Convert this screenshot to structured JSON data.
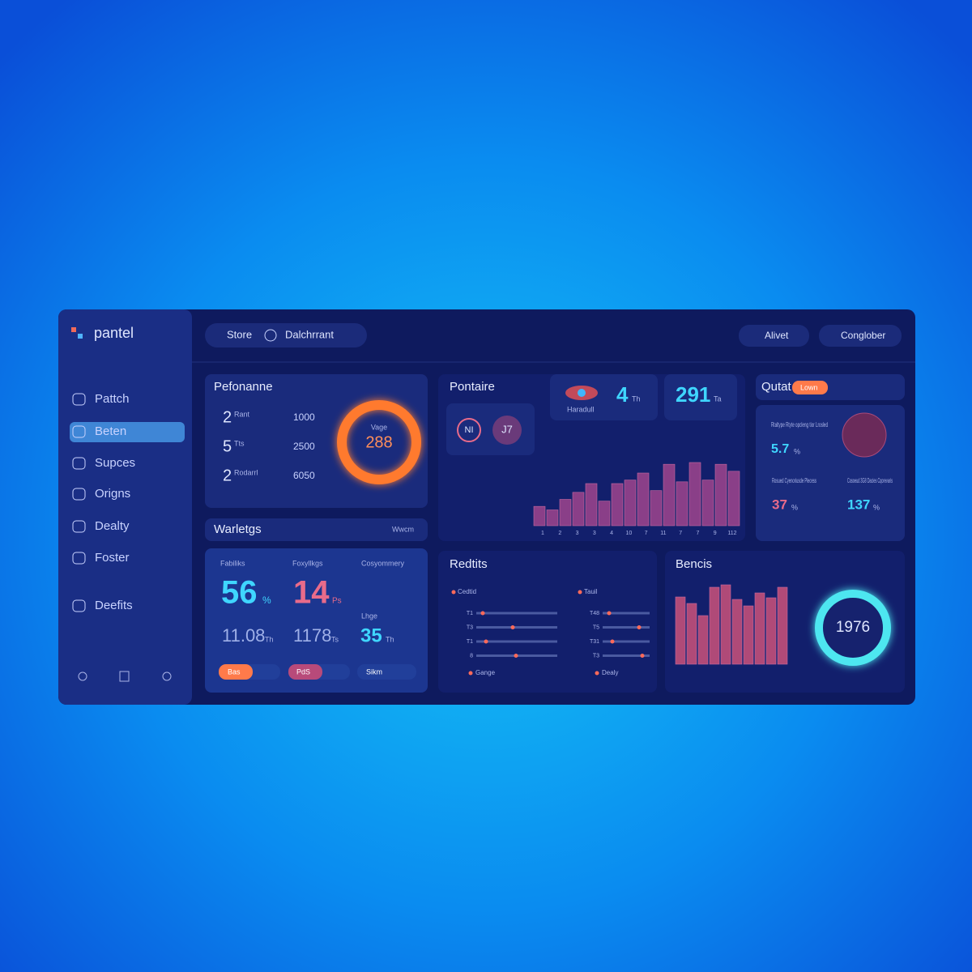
{
  "sidebar": {
    "brand": "pantel",
    "nav": [
      "Pattch",
      "Beten",
      "Supces",
      "Origns",
      "Dealty",
      "Foster",
      "Deefits"
    ]
  },
  "topbar": {
    "breadcrumb": [
      "Store",
      "Dalchrrant"
    ],
    "actions": [
      "Alivet",
      "Conglober"
    ]
  },
  "performance": {
    "title": "Pefonanne",
    "rows": [
      {
        "value": 2,
        "note": "Rant",
        "amount": 1000
      },
      {
        "value": 5,
        "note": "Tts",
        "amount": 2500
      },
      {
        "value": 2,
        "note": "Rodarrl",
        "amount": 6050
      }
    ],
    "ring_label": "Vage",
    "ring_value": 288
  },
  "warnings": {
    "title": "Warletgs",
    "link": "Wwcm"
  },
  "stats": {
    "labels": [
      "Fabiliks",
      "Foxyllkgs",
      "Cosyommery"
    ],
    "primary": [
      {
        "value": 56,
        "unit": "%"
      },
      {
        "value": 14,
        "unit": "Ps"
      }
    ],
    "secondary": [
      {
        "value": 11.08,
        "unit": "Th"
      },
      {
        "value": 1178,
        "unit": "Ts"
      }
    ],
    "third": {
      "label": "Lhge",
      "value": 35,
      "unit": "Th"
    },
    "pills": [
      "Bas",
      "PdS",
      "Sikm"
    ]
  },
  "portfolio": {
    "title": "Pontaire",
    "buttons": [
      "NI",
      "J7"
    ],
    "kpis": [
      {
        "value": 4,
        "unit": "Th",
        "label": "Haradull"
      },
      {
        "value": 291,
        "unit": "Ta"
      }
    ],
    "bars": [
      22,
      18,
      30,
      38,
      48,
      28,
      48,
      52,
      60,
      40,
      70,
      50,
      72,
      52,
      70,
      62
    ],
    "categories": [
      "1",
      "2",
      "3",
      "3",
      "4",
      "10",
      "7",
      "11",
      "7",
      "7",
      "9",
      "112"
    ]
  },
  "quota": {
    "title": "Qutat",
    "badge": "Lown",
    "note": "Rtaltype Rtyte opcleng tior Lrosled",
    "kpis": [
      {
        "label": "Rosued Cyenoriusde Plecess",
        "value": 37,
        "unit": "%"
      },
      {
        "label": "Cosoeud 3G8 Dacies Cqorevaris",
        "value": 137,
        "unit": "%"
      }
    ],
    "top_value": 5.7,
    "top_unit": "%"
  },
  "results": {
    "title": "Redtits",
    "left": {
      "legend": "Cedtid",
      "rows": [
        "T1",
        "T3",
        "T1",
        "8"
      ],
      "footer": "Gange"
    },
    "right": {
      "legend": "Tauil",
      "rows": [
        "T48",
        "T5",
        "T31",
        "T3"
      ],
      "footer": "Dealy"
    }
  },
  "benefits": {
    "title": "Bencis",
    "bars": [
      83,
      75,
      60,
      95,
      98,
      80,
      72,
      88,
      82,
      95
    ],
    "ring_value": 1976
  }
}
